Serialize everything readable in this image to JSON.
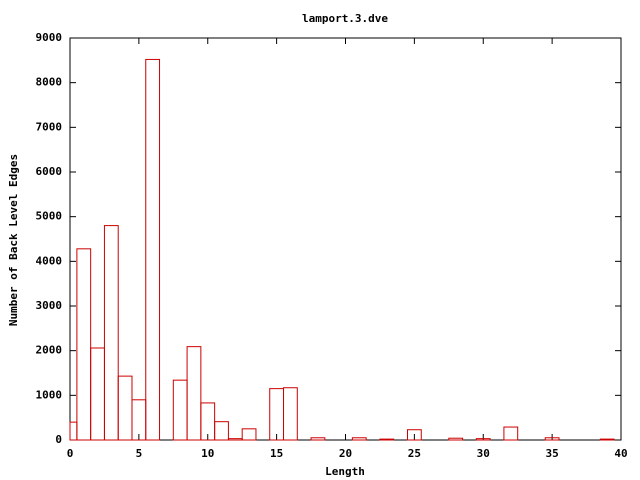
{
  "chart_data": {
    "type": "bar",
    "title": "lamport.3.dve",
    "x_label": "Length",
    "y_label": "Number of Back Level Edges",
    "x": [
      0,
      1,
      2,
      3,
      4,
      5,
      6,
      8,
      9,
      10,
      11,
      12,
      13,
      15,
      16,
      18,
      21,
      23,
      25,
      28,
      30,
      32,
      35,
      39
    ],
    "values": [
      400,
      4280,
      2060,
      4800,
      1430,
      900,
      8520,
      1340,
      2090,
      830,
      410,
      30,
      250,
      1150,
      1170,
      50,
      50,
      20,
      230,
      40,
      30,
      290,
      50,
      20
    ],
    "color": "#cc0000",
    "xlim": [
      0,
      40
    ],
    "xticks": [
      0,
      5,
      10,
      15,
      20,
      25,
      30,
      35,
      40
    ],
    "ylim": [
      0,
      9000
    ],
    "yticks": [
      0,
      1000,
      2000,
      3000,
      4000,
      5000,
      6000,
      7000,
      8000,
      9000
    ]
  }
}
